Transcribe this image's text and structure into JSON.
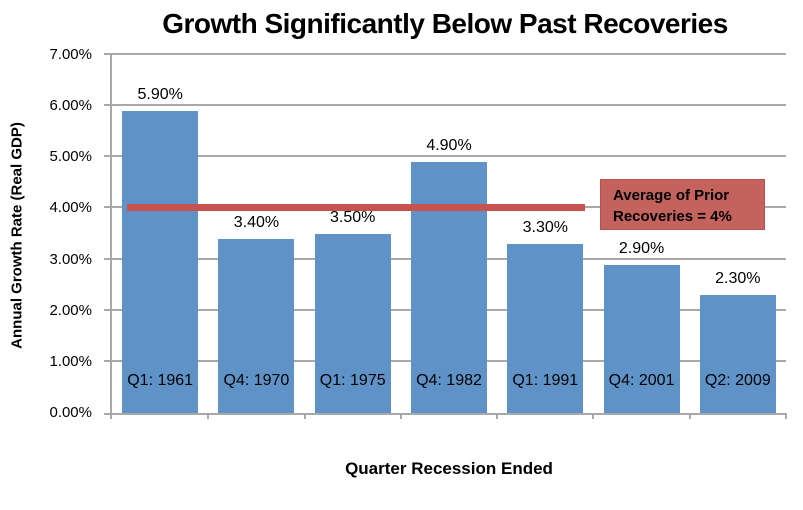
{
  "chart_data": {
    "type": "bar",
    "title": "Growth Significantly Below Past Recoveries",
    "xlabel": "Quarter Recession Ended",
    "ylabel": "Annual Growth Rate (Real GDP)",
    "categories": [
      "Q1: 1961",
      "Q4: 1970",
      "Q1: 1975",
      "Q4: 1982",
      "Q1: 1991",
      "Q4: 2001",
      "Q2: 2009"
    ],
    "values": [
      5.9,
      3.4,
      3.5,
      4.9,
      3.3,
      2.9,
      2.3
    ],
    "bar_labels": [
      "5.90%",
      "3.40%",
      "3.50%",
      "4.90%",
      "3.30%",
      "2.90%",
      "2.30%"
    ],
    "ylim": [
      0,
      7
    ],
    "ytick_step": 1,
    "ytick_labels": [
      "0.00%",
      "1.00%",
      "2.00%",
      "3.00%",
      "4.00%",
      "5.00%",
      "6.00%",
      "7.00%"
    ],
    "grid": true,
    "legend": "none",
    "colors": {
      "bar_fill": "#5f93c8",
      "gridline": "#a8a8a8",
      "average_line": "#c5534f",
      "annotation_fill": "#c4635d",
      "annotation_border": "#b3524e"
    },
    "annotation": {
      "average_value": 4,
      "label_line1": "Average of Prior",
      "label_line2": "Recoveries = 4%"
    }
  }
}
